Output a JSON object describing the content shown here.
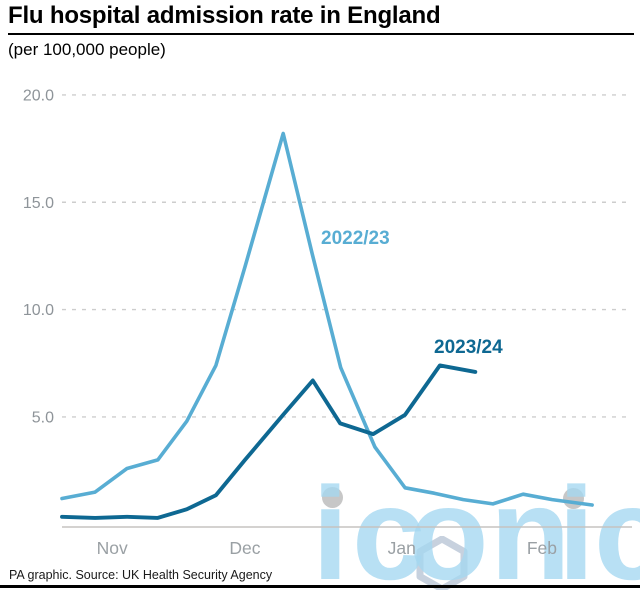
{
  "header": {
    "title": "Flu hospital admission rate in England",
    "subtitle": "(per 100,000 people)"
  },
  "footer": {
    "source": "PA graphic. Source: UK Health Security Agency"
  },
  "watermark": {
    "text": "iconic",
    "dot_color": "#c7c7c7",
    "letter_color": "#a5d8f1"
  },
  "chart_data": {
    "type": "line",
    "title": "Flu hospital admission rate in England",
    "ylabel": "(per 100,000 people)",
    "xlabel": "",
    "grid": "dashed horizontal",
    "legend_position": "inline labels next to lines",
    "ylim": [
      0,
      20.5
    ],
    "y_axis": {
      "ticks": [
        {
          "label": "5.0",
          "value": 5
        },
        {
          "label": "10.0",
          "value": 10
        },
        {
          "label": "15.0",
          "value": 15
        },
        {
          "label": "20.0",
          "value": 20
        }
      ],
      "color": "#8e9499"
    },
    "x_axis": {
      "ticks": [
        {
          "label": "Nov",
          "t": 8.8
        },
        {
          "label": "Dec",
          "t": 32.1
        },
        {
          "label": "Jan",
          "t": 59.6
        },
        {
          "label": "Feb",
          "t": 84.2
        }
      ],
      "color": "#9aa0a4"
    },
    "series": [
      {
        "name": "2022/23",
        "color": "#58add3",
        "points": [
          {
            "t": 0.0,
            "v": 1.2
          },
          {
            "t": 5.8,
            "v": 1.5
          },
          {
            "t": 11.4,
            "v": 2.6
          },
          {
            "t": 16.8,
            "v": 3.0
          },
          {
            "t": 21.9,
            "v": 4.8
          },
          {
            "t": 27.0,
            "v": 7.4
          },
          {
            "t": 32.1,
            "v": 12.0
          },
          {
            "t": 38.8,
            "v": 18.2
          },
          {
            "t": 43.9,
            "v": 12.6
          },
          {
            "t": 48.9,
            "v": 7.3
          },
          {
            "t": 54.9,
            "v": 3.6
          },
          {
            "t": 60.2,
            "v": 1.7
          },
          {
            "t": 65.3,
            "v": 1.45
          },
          {
            "t": 70.4,
            "v": 1.15
          },
          {
            "t": 75.6,
            "v": 0.95
          },
          {
            "t": 80.9,
            "v": 1.4
          },
          {
            "t": 86.0,
            "v": 1.15
          },
          {
            "t": 93.0,
            "v": 0.9
          }
        ]
      },
      {
        "name": "2023/24",
        "color": "#0e6892",
        "points": [
          {
            "t": 0.0,
            "v": 0.35
          },
          {
            "t": 5.8,
            "v": 0.3
          },
          {
            "t": 11.4,
            "v": 0.35
          },
          {
            "t": 16.8,
            "v": 0.3
          },
          {
            "t": 21.9,
            "v": 0.7
          },
          {
            "t": 27.0,
            "v": 1.35
          },
          {
            "t": 32.1,
            "v": 3.0
          },
          {
            "t": 38.8,
            "v": 5.1
          },
          {
            "t": 44.0,
            "v": 6.7
          },
          {
            "t": 48.8,
            "v": 4.7
          },
          {
            "t": 54.6,
            "v": 4.2
          },
          {
            "t": 60.2,
            "v": 5.1
          },
          {
            "t": 66.3,
            "v": 7.4
          },
          {
            "t": 72.5,
            "v": 7.1
          }
        ]
      }
    ]
  }
}
